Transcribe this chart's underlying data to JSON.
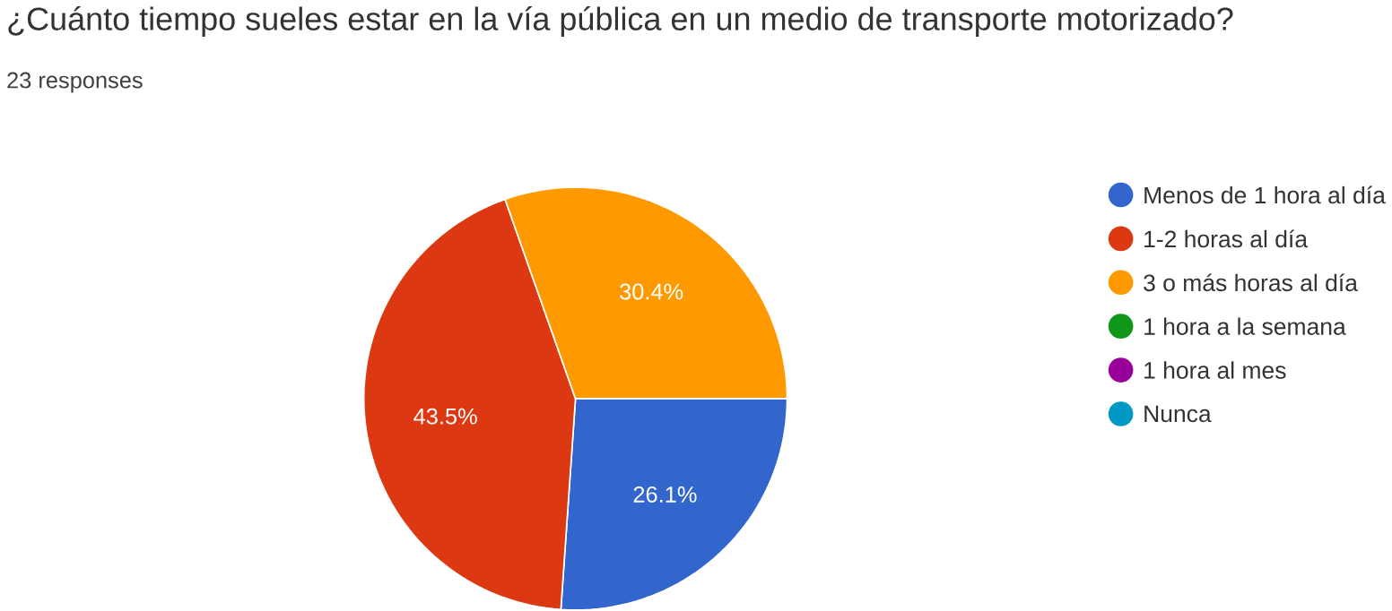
{
  "chart_data": {
    "type": "pie",
    "title": "¿Cuánto tiempo sueles estar en la vía pública en un medio de transporte motorizado?",
    "subtitle": "23 responses",
    "categories": [
      "Menos de 1 hora al día",
      "1-2 horas al día",
      "3 o más horas al día",
      "1 hora a la semana",
      "1 hora al mes",
      "Nunca"
    ],
    "values": [
      26.1,
      43.5,
      30.4,
      0,
      0,
      0
    ],
    "value_labels": [
      "26.1%",
      "43.5%",
      "30.4%",
      null,
      null,
      null
    ],
    "colors": [
      "#3366cc",
      "#dc3912",
      "#ff9900",
      "#109618",
      "#990099",
      "#0099c6"
    ],
    "legend": "right"
  }
}
